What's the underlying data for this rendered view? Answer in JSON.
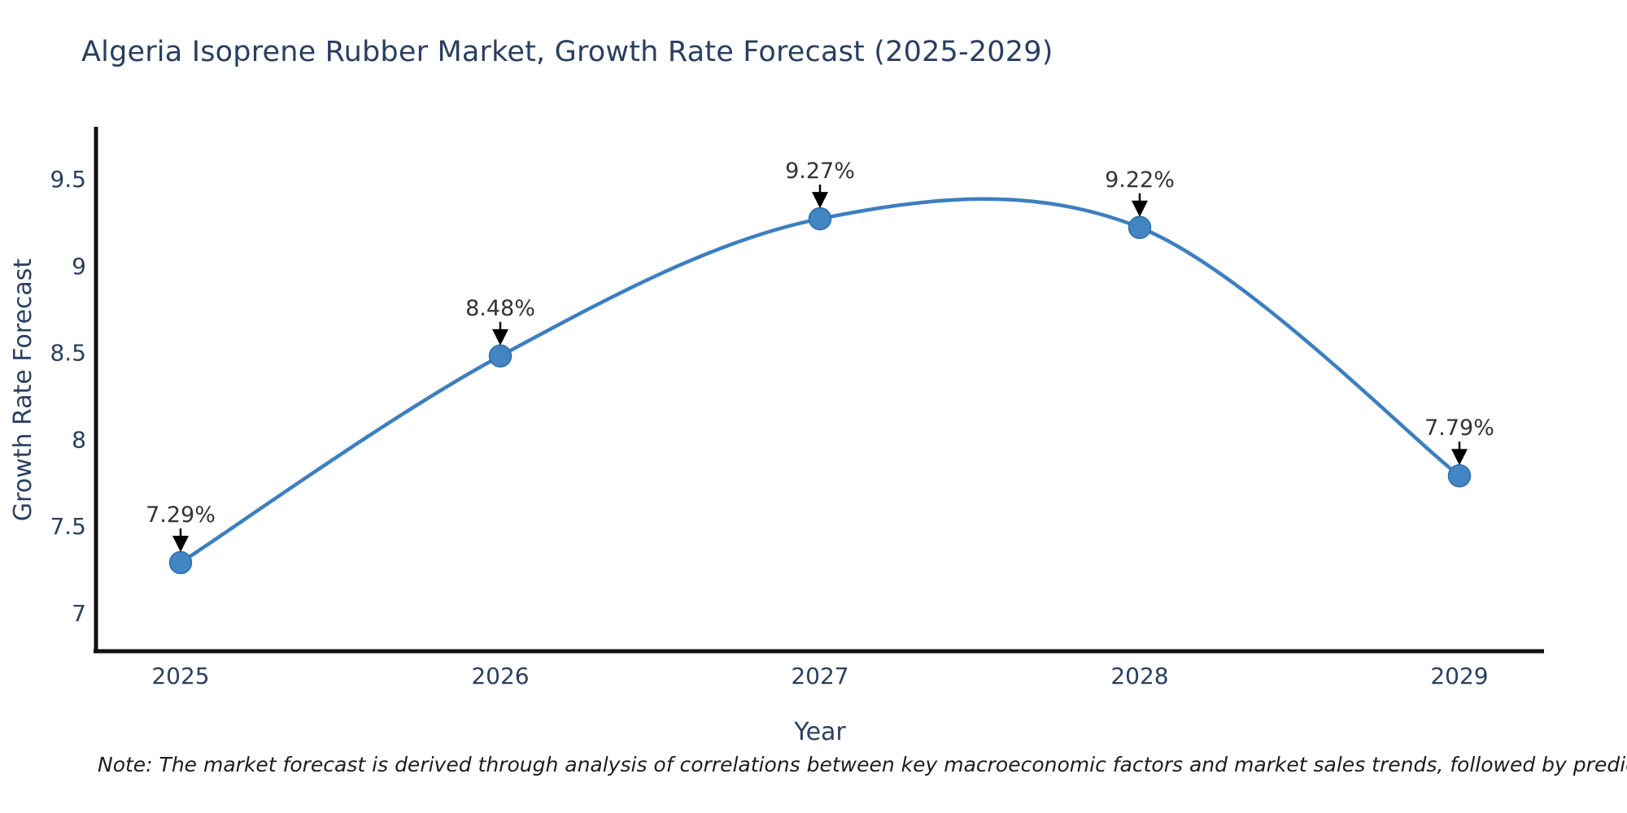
{
  "chart_data": {
    "type": "line",
    "title": "Algeria Isoprene Rubber Market, Growth Rate Forecast (2025-2029)",
    "xlabel": "Year",
    "ylabel": "Growth Rate Forecast",
    "categories": [
      "2025",
      "2026",
      "2027",
      "2028",
      "2029"
    ],
    "series": [
      {
        "name": "Growth Rate Forecast",
        "values": [
          7.29,
          8.48,
          9.27,
          9.22,
          7.79
        ],
        "point_labels": [
          "7.29%",
          "8.48%",
          "9.27%",
          "9.22%",
          "7.79%"
        ]
      }
    ],
    "yticks": [
      7,
      7.5,
      8,
      8.5,
      9,
      9.5
    ],
    "ylim": [
      6.78,
      9.79
    ],
    "grid": false,
    "legend_position": "none",
    "line_shape": "spline",
    "line_color": "#3d7fbf",
    "marker_color": "#4185c2",
    "marker_edge_color": "#2f6da8",
    "annotation_text_color": "#333333",
    "annotation_arrow_color": "#000000",
    "axis_line_color": "#111111",
    "tick_label_color": "#2a3f5f",
    "note": "Note: The market forecast is derived through analysis of correlations between key macroeconomic factors and market sales trends, followed by predictive modeling to project future sales"
  }
}
